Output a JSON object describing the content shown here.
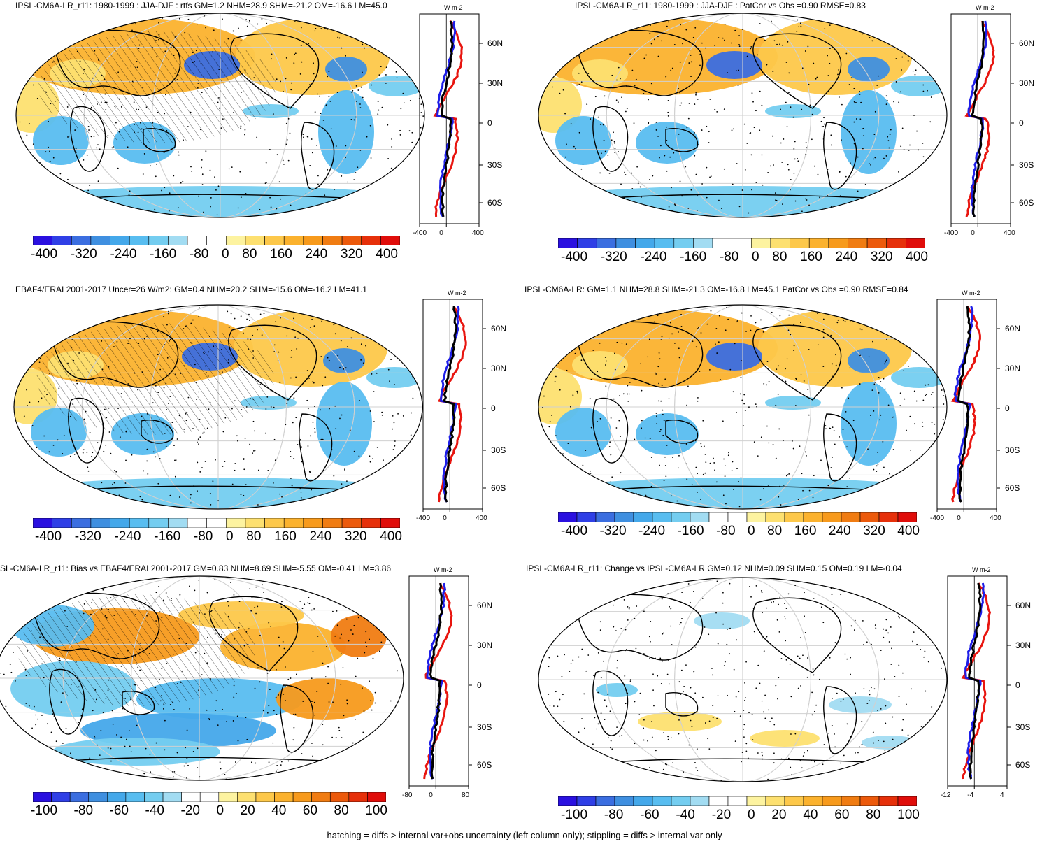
{
  "panels": [
    {
      "title": "IPSL-CM6A-LR_r11: 1980-1999 : JJA-DJF : rtfs GM=1.2 NHM=28.9 SHM=-21.2 OM=-16.6 LM=45.0",
      "cbar_labels": [
        "-400",
        "-320",
        "-240",
        "-160",
        "-80",
        "0",
        "80",
        "160",
        "240",
        "320",
        "400"
      ],
      "unit": "W m-2",
      "lat_labels": [
        "60N",
        "30N",
        "0",
        "30S",
        "60S"
      ],
      "x_ticks": [
        "-400",
        "0",
        "400"
      ],
      "hatching": true
    },
    {
      "title": "IPSL-CM6A-LR_r11: 1980-1999 : JJA-DJF : PatCor vs Obs =0.90 RMSE=0.83",
      "cbar_labels": [
        "-400",
        "-320",
        "-240",
        "-160",
        "-80",
        "0",
        "80",
        "160",
        "240",
        "320",
        "400"
      ],
      "unit": "W m-2",
      "lat_labels": [
        "60N",
        "30N",
        "0",
        "30S",
        "60S"
      ],
      "x_ticks": [
        "-400",
        "0",
        "400"
      ],
      "hatching": false
    },
    {
      "title": "EBAF4/ERAI 2001-2017 Uncer=26 W/m2: GM=0.4 NHM=20.2 SHM=-15.6 OM=-16.2 LM=41.1",
      "cbar_labels": [
        "-400",
        "-320",
        "-240",
        "-160",
        "-80",
        "0",
        "80",
        "160",
        "240",
        "320",
        "400"
      ],
      "unit": "W m-2",
      "lat_labels": [
        "60N",
        "30N",
        "0",
        "30S",
        "60S"
      ],
      "x_ticks": [
        "-400",
        "0",
        "400"
      ],
      "hatching": true
    },
    {
      "title": "IPSL-CM6A-LR: GM=1.1 NHM=28.8 SHM=-21.3 OM=-16.8 LM=45.1 PatCor vs Obs =0.90 RMSE=0.84",
      "cbar_labels": [
        "-400",
        "-320",
        "-240",
        "-160",
        "-80",
        "0",
        "80",
        "160",
        "240",
        "320",
        "400"
      ],
      "unit": "W m-2",
      "lat_labels": [
        "60N",
        "30N",
        "0",
        "30S",
        "60S"
      ],
      "x_ticks": [
        "-400",
        "0",
        "400"
      ],
      "hatching": false
    },
    {
      "title": "SL-CM6A-LR_r11: Bias vs EBAF4/ERAI 2001-2017 GM=0.83 NHM=8.69 SHM=-5.55 OM=-0.41 LM=3.86",
      "cbar_labels": [
        "-100",
        "-80",
        "-60",
        "-40",
        "-20",
        "0",
        "20",
        "40",
        "60",
        "80",
        "100"
      ],
      "unit": "W m-2",
      "lat_labels": [
        "60N",
        "30N",
        "0",
        "30S",
        "60S"
      ],
      "x_ticks": [
        "-80",
        "0",
        "80"
      ],
      "hatching": true
    },
    {
      "title": "IPSL-CM6A-LR_r11: Change vs IPSL-CM6A-LR GM=0.12 NHM=0.09 SHM=0.15 OM=0.19 LM=-0.04",
      "cbar_labels": [
        "-100",
        "-80",
        "-60",
        "-40",
        "-20",
        "0",
        "20",
        "40",
        "60",
        "80",
        "100"
      ],
      "unit": "W m-2",
      "lat_labels": [
        "60N",
        "30N",
        "0",
        "30S",
        "60S"
      ],
      "x_ticks": [
        "-12",
        "-4",
        "4"
      ],
      "hatching": false
    }
  ],
  "colors": {
    "scale": [
      "#2a10e0",
      "#2f3fe6",
      "#3b6ee0",
      "#3f8fe0",
      "#44a8ea",
      "#58bdf0",
      "#74cdf0",
      "#a2dcf2",
      "#ffffff",
      "#ffffff",
      "#fdf3a0",
      "#fde070",
      "#fdc84a",
      "#fbb22e",
      "#f79a1c",
      "#f07c12",
      "#ec5a0c",
      "#e6300a",
      "#e00d0a"
    ],
    "profile_model": "#000000",
    "profile_obs_pos": "#e8150f",
    "profile_obs_neg": "#1e1ee8"
  },
  "footnote": "hatching = diffs > internal var+obs uncertainty (left column only); stippling = diffs > internal var only"
}
